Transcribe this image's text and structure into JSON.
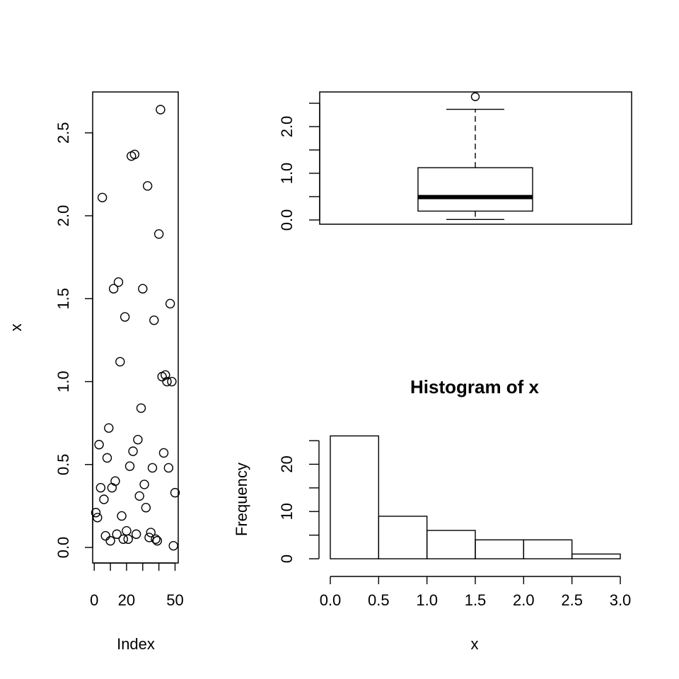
{
  "chart_data": [
    {
      "type": "scatter",
      "xlabel": "Index",
      "ylabel": "x",
      "xlim": [
        0,
        50
      ],
      "ylim": [
        0,
        2.65
      ],
      "xticks": [
        0,
        20,
        50
      ],
      "yticks": [
        0.0,
        0.5,
        1.0,
        1.5,
        2.0,
        2.5
      ],
      "xtick_labels": [
        "0",
        "20",
        "50"
      ],
      "ytick_labels": [
        "0.0",
        "0.5",
        "1.0",
        "1.5",
        "2.0",
        "2.5"
      ],
      "x": [
        1,
        2,
        3,
        4,
        5,
        6,
        7,
        8,
        9,
        10,
        11,
        12,
        13,
        14,
        15,
        16,
        17,
        18,
        19,
        20,
        21,
        22,
        23,
        24,
        25,
        26,
        27,
        28,
        29,
        30,
        31,
        32,
        33,
        34,
        35,
        36,
        37,
        38,
        39,
        40,
        41,
        42,
        43,
        44,
        45,
        46,
        47,
        48,
        49,
        50
      ],
      "y": [
        0.21,
        0.18,
        0.62,
        0.36,
        2.11,
        0.29,
        0.07,
        0.54,
        0.72,
        0.04,
        0.36,
        1.56,
        0.4,
        0.08,
        1.6,
        1.12,
        0.19,
        0.05,
        1.39,
        0.1,
        0.05,
        0.49,
        2.36,
        0.58,
        2.37,
        0.08,
        0.65,
        0.31,
        0.84,
        1.56,
        0.38,
        0.24,
        2.18,
        0.06,
        0.09,
        0.48,
        1.37,
        0.05,
        0.04,
        1.89,
        2.64,
        1.03,
        0.57,
        1.04,
        1.0,
        0.48,
        1.47,
        1.0,
        0.01,
        0.33
      ]
    },
    {
      "type": "boxplot",
      "ylim": [
        0,
        2.65
      ],
      "yticks": [
        0.0,
        0.5,
        1.0,
        1.5,
        2.0,
        2.5
      ],
      "ytick_labels": [
        "0.0",
        "",
        "1.0",
        "",
        "2.0",
        ""
      ],
      "min": 0.01,
      "q1": 0.19,
      "median": 0.49,
      "q3": 1.12,
      "max_whisker": 2.37,
      "outliers": [
        2.64
      ]
    },
    {
      "type": "bar",
      "title": "Histogram of x",
      "xlabel": "x",
      "ylabel": "Frequency",
      "bins": [
        [
          0.0,
          0.5
        ],
        [
          0.5,
          1.0
        ],
        [
          1.0,
          1.5
        ],
        [
          1.5,
          2.0
        ],
        [
          2.0,
          2.5
        ],
        [
          2.5,
          3.0
        ]
      ],
      "values": [
        26,
        9,
        6,
        4,
        4,
        1
      ],
      "xticks": [
        0.0,
        0.5,
        1.0,
        1.5,
        2.0,
        2.5,
        3.0
      ],
      "xtick_labels": [
        "0.0",
        "0.5",
        "1.0",
        "1.5",
        "2.0",
        "2.5",
        "3.0"
      ],
      "yticks": [
        0,
        5,
        10,
        15,
        20,
        25
      ],
      "ytick_labels": [
        "0",
        "",
        "10",
        "",
        "20",
        ""
      ],
      "ylim": [
        0,
        26
      ]
    }
  ]
}
